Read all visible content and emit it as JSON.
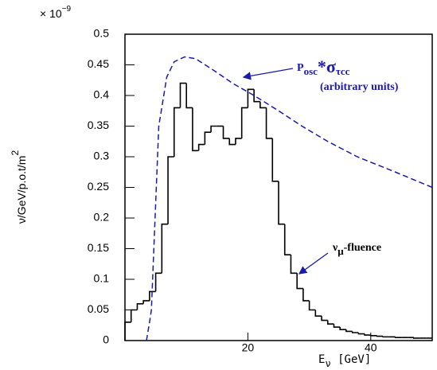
{
  "chart_data": {
    "type": "histogram",
    "multiplier": {
      "base": "× 10",
      "exponent": "−9"
    },
    "x_label": {
      "main": "E",
      "sub": "ν",
      "rest": " [GeV]"
    },
    "y_label": {
      "main": "ν/GeV/p.o.t/m",
      "sup": "2"
    },
    "xlim": [
      0,
      50
    ],
    "ylim": [
      0,
      0.5
    ],
    "xticks": [
      20,
      40
    ],
    "yticks": [
      0,
      0.05,
      0.1,
      0.15,
      0.2,
      0.25,
      0.3,
      0.35,
      0.4,
      0.45,
      0.5
    ],
    "series": [
      {
        "type": "histogram",
        "color": "#000000",
        "bins": [
          0,
          1,
          2,
          3,
          4,
          5,
          6,
          7,
          8,
          9,
          10,
          11,
          12,
          13,
          14,
          15,
          16,
          17,
          18,
          19,
          20,
          21,
          22,
          23,
          24,
          25,
          26,
          27,
          28,
          29,
          30,
          31,
          32,
          33,
          34,
          35,
          36,
          37,
          38,
          39,
          40,
          41,
          42,
          43,
          44,
          45,
          46,
          47,
          48,
          49,
          50
        ],
        "values": [
          0.03,
          0.05,
          0.06,
          0.065,
          0.08,
          0.11,
          0.19,
          0.3,
          0.38,
          0.42,
          0.38,
          0.31,
          0.32,
          0.34,
          0.35,
          0.35,
          0.33,
          0.32,
          0.33,
          0.38,
          0.41,
          0.39,
          0.38,
          0.33,
          0.26,
          0.19,
          0.14,
          0.11,
          0.085,
          0.065,
          0.05,
          0.04,
          0.033,
          0.027,
          0.022,
          0.018,
          0.015,
          0.013,
          0.011,
          0.009,
          0.008,
          0.007,
          0.006,
          0.006,
          0.005,
          0.005,
          0.005,
          0.004,
          0.004,
          0.004
        ]
      },
      {
        "type": "line",
        "color": "#1a1aaa",
        "dashed": true,
        "x": [
          3.5,
          4,
          4.3,
          4.9,
          5.5,
          6.8,
          8,
          9.7,
          11.5,
          14.6,
          17.5,
          21,
          25,
          28.8,
          33,
          37.8,
          44,
          50
        ],
        "values": [
          0,
          0.03,
          0.05,
          0.2,
          0.35,
          0.43,
          0.455,
          0.463,
          0.46,
          0.44,
          0.42,
          0.4,
          0.375,
          0.35,
          0.325,
          0.3,
          0.275,
          0.25
        ]
      }
    ],
    "annotations": [
      {
        "p": "P",
        "osc": "osc",
        "star": "*σ",
        "tau": "τcc",
        "note": "(arbitrary units)"
      },
      {
        "nu": "ν",
        "mu": "μ",
        "rest": "-fluence"
      }
    ]
  }
}
